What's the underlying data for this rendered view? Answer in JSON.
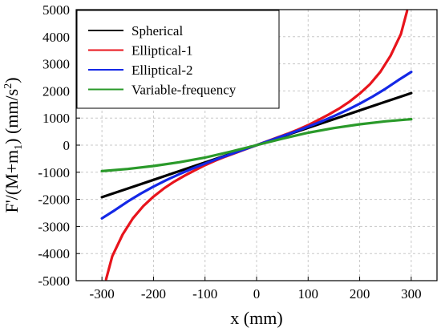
{
  "chart_data": {
    "type": "line",
    "xlabel": "x (mm)",
    "ylabel": "F'/(M+m1)  (mm/s2)",
    "ylabel_parts": {
      "main": "F'/(M+m",
      "sub": "1",
      "mid": ")  (mm/s",
      "sup": "2",
      "end": ")"
    },
    "xlim": [
      -350,
      350
    ],
    "ylim": [
      -5000,
      5000
    ],
    "xticks": [
      -300,
      -200,
      -100,
      0,
      100,
      200,
      300
    ],
    "yticks": [
      -5000,
      -4000,
      -3000,
      -2000,
      -1000,
      0,
      1000,
      2000,
      3000,
      4000,
      5000
    ],
    "xtick_labels": [
      "-300",
      "-200",
      "-100",
      "0",
      "100",
      "200",
      "300"
    ],
    "ytick_labels": [
      "-5000",
      "-4000",
      "-3000",
      "-2000",
      "-1000",
      "0",
      "1000",
      "2000",
      "3000",
      "4000",
      "5000"
    ],
    "grid": true,
    "legend_position": "top-left",
    "series": [
      {
        "name": "Spherical",
        "color": "#000000",
        "x": [
          -300,
          -250,
          -200,
          -150,
          -100,
          -50,
          0,
          50,
          100,
          150,
          200,
          250,
          300
        ],
        "y": [
          -1920,
          -1600,
          -1280,
          -960,
          -640,
          -320,
          0,
          320,
          640,
          960,
          1280,
          1600,
          1920
        ]
      },
      {
        "name": "Elliptical-1",
        "color": "#e8141c",
        "x": [
          -292,
          -280,
          -260,
          -240,
          -220,
          -200,
          -180,
          -160,
          -140,
          -120,
          -100,
          -80,
          -60,
          -40,
          -20,
          0,
          20,
          40,
          60,
          80,
          100,
          120,
          140,
          160,
          180,
          200,
          220,
          240,
          260,
          280,
          292
        ],
        "y": [
          -4950,
          -4100,
          -3300,
          -2700,
          -2250,
          -1900,
          -1600,
          -1350,
          -1130,
          -930,
          -740,
          -570,
          -420,
          -280,
          -140,
          0,
          140,
          280,
          420,
          570,
          740,
          930,
          1130,
          1350,
          1600,
          1900,
          2250,
          2700,
          3300,
          4100,
          4950
        ]
      },
      {
        "name": "Elliptical-2",
        "color": "#1428e6",
        "x": [
          -300,
          -275,
          -250,
          -225,
          -200,
          -175,
          -150,
          -125,
          -100,
          -75,
          -50,
          -25,
          0,
          25,
          50,
          75,
          100,
          125,
          150,
          175,
          200,
          225,
          250,
          275,
          300
        ],
        "y": [
          -2700,
          -2400,
          -2080,
          -1790,
          -1530,
          -1290,
          -1070,
          -870,
          -680,
          -500,
          -330,
          -165,
          0,
          165,
          330,
          500,
          680,
          870,
          1070,
          1290,
          1530,
          1790,
          2080,
          2400,
          2700
        ]
      },
      {
        "name": "Variable-frequency",
        "color": "#2a9a2a",
        "x": [
          -300,
          -250,
          -200,
          -150,
          -100,
          -50,
          0,
          50,
          100,
          150,
          200,
          250,
          300
        ],
        "y": [
          -960,
          -880,
          -770,
          -630,
          -460,
          -240,
          0,
          240,
          460,
          630,
          770,
          880,
          960
        ]
      }
    ]
  }
}
